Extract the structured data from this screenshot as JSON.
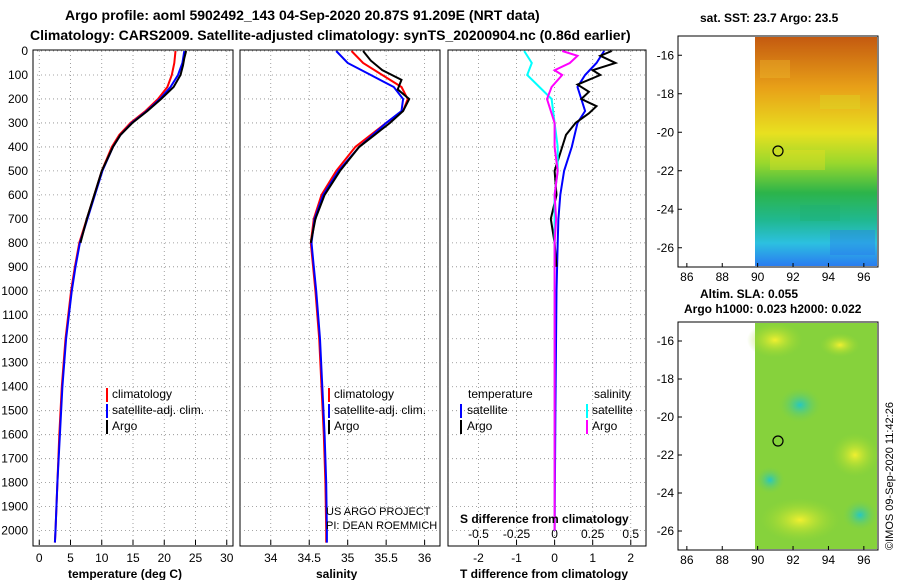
{
  "titles": {
    "line1": "Argo profile: aoml 5902492_143 04-Sep-2020 20.87S 91.209E (NRT data)",
    "line2": "Climatology: CARS2009. Satellite-adjusted climatology: synTS_20200904.nc (0.86d earlier)"
  },
  "colors": {
    "climatology": "#ff0000",
    "satellite": "#0000ff",
    "argo": "#000000",
    "salinity_sat": "#00ffff",
    "salinity_argo": "#ff00ff"
  },
  "depth_ticks": [
    "0",
    "100",
    "200",
    "300",
    "400",
    "500",
    "600",
    "700",
    "800",
    "900",
    "1000",
    "1100",
    "1200",
    "1300",
    "1400",
    "1500",
    "1600",
    "1700",
    "1800",
    "1900",
    "2000"
  ],
  "chart_data": [
    {
      "type": "line",
      "title": "",
      "xlabel": "temperature (deg C)",
      "ylabel": "depth",
      "xlim": [
        -1,
        31
      ],
      "ylim": [
        2060,
        0
      ],
      "xticks": [
        "0",
        "5",
        "10",
        "15",
        "20",
        "25",
        "30"
      ],
      "legend": [
        "climatology",
        "satellite-adj. clim.",
        "Argo"
      ],
      "series": [
        {
          "name": "climatology",
          "color": "#ff0000",
          "depth": [
            0,
            50,
            100,
            150,
            200,
            250,
            300,
            350,
            400,
            500,
            600,
            700,
            800,
            900,
            1000,
            1200,
            1400,
            1600,
            1800,
            2000,
            2050
          ],
          "values": [
            21.8,
            21.6,
            21.2,
            20.5,
            19.0,
            17.0,
            14.6,
            12.8,
            11.6,
            10.0,
            8.8,
            7.6,
            6.4,
            5.7,
            5.1,
            4.2,
            3.6,
            3.2,
            2.9,
            2.6,
            2.5
          ]
        },
        {
          "name": "satellite-adj. clim.",
          "color": "#0000ff",
          "depth": [
            0,
            50,
            100,
            150,
            200,
            250,
            300,
            350,
            400,
            500,
            600,
            700,
            800,
            900,
            1000,
            1200,
            1400,
            1600,
            1800,
            2000,
            2050
          ],
          "values": [
            23.2,
            22.9,
            22.2,
            21.0,
            19.3,
            17.2,
            14.8,
            13.0,
            11.8,
            10.1,
            8.9,
            7.7,
            6.5,
            5.8,
            5.2,
            4.3,
            3.7,
            3.3,
            2.9,
            2.6,
            2.5
          ]
        },
        {
          "name": "Argo",
          "color": "#000000",
          "depth": [
            0,
            30,
            60,
            100,
            150,
            200,
            250,
            300,
            350,
            400,
            500,
            600,
            700,
            800
          ],
          "values": [
            23.5,
            23.2,
            23.0,
            22.6,
            21.5,
            19.5,
            17.3,
            14.9,
            13.0,
            11.8,
            10.0,
            8.8,
            7.6,
            6.6
          ]
        }
      ]
    },
    {
      "type": "line",
      "title": "",
      "xlabel": "salinity",
      "ylabel": "depth",
      "xlim": [
        33.6,
        36.2
      ],
      "ylim": [
        2060,
        0
      ],
      "xticks": [
        "34",
        "34.5",
        "35",
        "35.5",
        "36"
      ],
      "legend": [
        "climatology",
        "satellite-adj. clim.",
        "Argo"
      ],
      "annotations": [
        "US ARGO PROJECT",
        "PI: DEAN ROEMMICH"
      ],
      "series": [
        {
          "name": "climatology",
          "color": "#ff0000",
          "depth": [
            0,
            50,
            100,
            150,
            200,
            250,
            300,
            400,
            500,
            600,
            700,
            800,
            900,
            1000,
            1200,
            1400,
            1600,
            1800,
            2000,
            2050
          ],
          "values": [
            35.05,
            35.2,
            35.45,
            35.7,
            35.78,
            35.72,
            35.5,
            35.1,
            34.85,
            34.66,
            34.56,
            34.52,
            34.55,
            34.58,
            34.63,
            34.66,
            34.69,
            34.71,
            34.72,
            34.72
          ]
        },
        {
          "name": "satellite-adj. clim.",
          "color": "#0000ff",
          "depth": [
            0,
            50,
            100,
            150,
            200,
            250,
            300,
            400,
            500,
            600,
            700,
            800,
            900,
            1000,
            1200,
            1400,
            1600,
            1800,
            2000,
            2050
          ],
          "values": [
            34.85,
            35.0,
            35.3,
            35.6,
            35.72,
            35.7,
            35.5,
            35.15,
            34.88,
            34.68,
            34.57,
            34.53,
            34.56,
            34.59,
            34.64,
            34.67,
            34.7,
            34.72,
            34.73,
            34.73
          ]
        },
        {
          "name": "Argo",
          "color": "#000000",
          "depth": [
            0,
            40,
            80,
            120,
            160,
            200,
            250,
            300,
            350,
            400,
            500,
            600,
            700,
            800
          ],
          "values": [
            35.2,
            35.3,
            35.45,
            35.7,
            35.65,
            35.8,
            35.72,
            35.55,
            35.35,
            35.15,
            34.9,
            34.7,
            34.58,
            34.52
          ]
        }
      ]
    },
    {
      "type": "line",
      "title": "",
      "xlabel": "T difference from climatology",
      "ylabel": "depth",
      "xlim": [
        -2.8,
        2.4
      ],
      "ylim": [
        2060,
        0
      ],
      "xticks": [
        "-2",
        "-1",
        "0",
        "1",
        "2"
      ],
      "secondary_xlabel": "S difference from climatology",
      "secondary_xlim": [
        -0.7,
        0.6
      ],
      "secondary_xticks": [
        "-0.5",
        "-0.25",
        "0",
        "0.25",
        "0.5"
      ],
      "legend": [
        "temperature satellite",
        "temperature Argo",
        "salinity satellite",
        "salinity Argo"
      ],
      "series": [
        {
          "name": "temperature satellite",
          "color": "#0000ff",
          "depth": [
            0,
            50,
            100,
            150,
            200,
            250,
            300,
            400,
            500,
            600,
            700,
            800,
            1000,
            1500,
            2000
          ],
          "values": [
            1.3,
            1.1,
            0.8,
            0.6,
            0.7,
            0.8,
            0.6,
            0.45,
            0.25,
            0.15,
            0.1,
            0.08,
            0.05,
            0.02,
            0.0
          ]
        },
        {
          "name": "temperature Argo",
          "color": "#000000",
          "depth": [
            0,
            20,
            50,
            80,
            100,
            140,
            170,
            200,
            230,
            260,
            300,
            350,
            400,
            500,
            600,
            700,
            800,
            900
          ],
          "values": [
            1.5,
            1.2,
            1.6,
            1.0,
            1.2,
            0.6,
            0.9,
            0.7,
            1.1,
            0.9,
            0.55,
            0.3,
            0.2,
            0.0,
            0.05,
            -0.1,
            0.0,
            0.05
          ]
        },
        {
          "name": "salinity satellite",
          "color": "#00ffff",
          "depth": [
            0,
            50,
            100,
            150,
            200,
            300,
            400,
            500,
            600,
            700,
            800,
            1000,
            1500,
            2000
          ],
          "values": [
            -0.2,
            -0.15,
            -0.18,
            -0.1,
            -0.02,
            0.0,
            0.02,
            0.02,
            0.0,
            0.0,
            0.0,
            0.0,
            0.0,
            0.0
          ]
        },
        {
          "name": "salinity Argo",
          "color": "#ff00ff",
          "depth": [
            0,
            20,
            50,
            80,
            100,
            150,
            200,
            300,
            400,
            500,
            600,
            700,
            800,
            900,
            1000,
            1500,
            2000
          ],
          "values": [
            0.05,
            0.15,
            0.1,
            0.0,
            0.05,
            -0.02,
            -0.05,
            0.0,
            0.0,
            0.02,
            0.0,
            0.01,
            0.0,
            0.0,
            0.0,
            0.0,
            0.0
          ]
        }
      ]
    },
    {
      "type": "heatmap",
      "title": "sat. SST: 23.7 Argo: 23.5",
      "xticks": [
        "86",
        "88",
        "90",
        "92",
        "94",
        "96"
      ],
      "yticks": [
        "-16",
        "-18",
        "-20",
        "-22",
        "-24",
        "-26"
      ],
      "xlim": [
        85.5,
        96.8
      ],
      "ylim": [
        -27,
        -15
      ],
      "marker": {
        "lon": 91.209,
        "lat": -20.87
      }
    },
    {
      "type": "heatmap",
      "title": "Altim. SLA: 0.055",
      "subtitle": "Argo h1000: 0.023 h2000: 0.022",
      "xticks": [
        "86",
        "88",
        "90",
        "92",
        "94",
        "96"
      ],
      "yticks": [
        "-16",
        "-18",
        "-20",
        "-22",
        "-24",
        "-26"
      ],
      "xlim": [
        85.5,
        96.8
      ],
      "ylim": [
        -27,
        -15
      ],
      "marker": {
        "lon": 91.209,
        "lat": -20.87
      }
    }
  ],
  "legend_panel1": [
    "climatology",
    "satellite-adj. clim.",
    "Argo"
  ],
  "legend_panel3": {
    "header_left": "temperature",
    "header_right": "salinity",
    "left": [
      "satellite",
      "Argo"
    ],
    "right": [
      "satellite",
      "Argo"
    ]
  },
  "watermark": "©IMOS 09-Sep-2020 11:42:26"
}
